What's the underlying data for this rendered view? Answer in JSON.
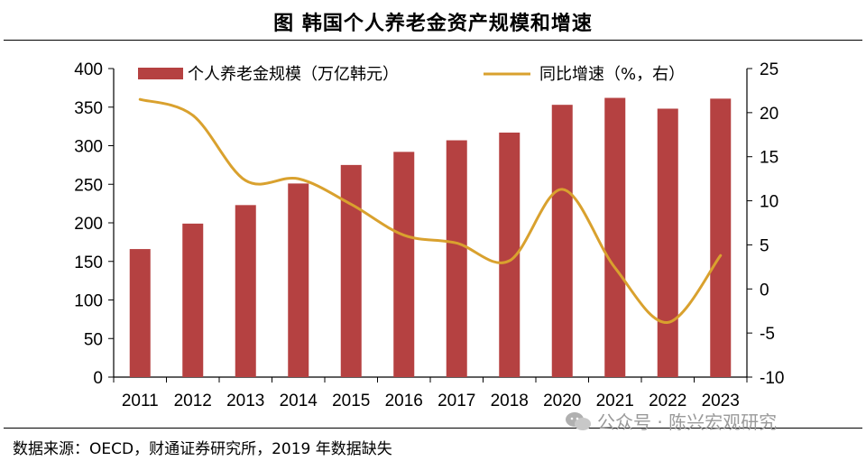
{
  "title": "图  韩国个人养老金资产规模和增速",
  "source": "数据来源：OECD，财通证券研究所，2019 年数据缺失",
  "watermark": "公众号 · 陈兴宏观研究",
  "chart_data": {
    "type": "bar",
    "categories": [
      "2011",
      "2012",
      "2013",
      "2014",
      "2015",
      "2016",
      "2017",
      "2018",
      "2020",
      "2021",
      "2022",
      "2023"
    ],
    "series": [
      {
        "name": "个人养老金规模（万亿韩元）",
        "type": "bar",
        "axis": "left",
        "values": [
          166,
          199,
          223,
          251,
          275,
          292,
          307,
          317,
          353,
          362,
          348,
          361
        ],
        "color": "#b54141"
      },
      {
        "name": "同比增速（%，右）",
        "type": "line",
        "axis": "right",
        "values": [
          21.5,
          19.7,
          12.3,
          12.5,
          9.6,
          6.1,
          5.2,
          3.2,
          11.3,
          2.4,
          -3.8,
          3.8
        ],
        "color": "#d9a12e"
      }
    ],
    "ylim": [
      0,
      400
    ],
    "yticks": [
      0,
      50,
      100,
      150,
      200,
      250,
      300,
      350,
      400
    ],
    "y2lim": [
      -10,
      25
    ],
    "y2ticks": [
      -10,
      -5,
      0,
      5,
      10,
      15,
      20,
      25
    ],
    "grid": false,
    "legend": "top"
  }
}
